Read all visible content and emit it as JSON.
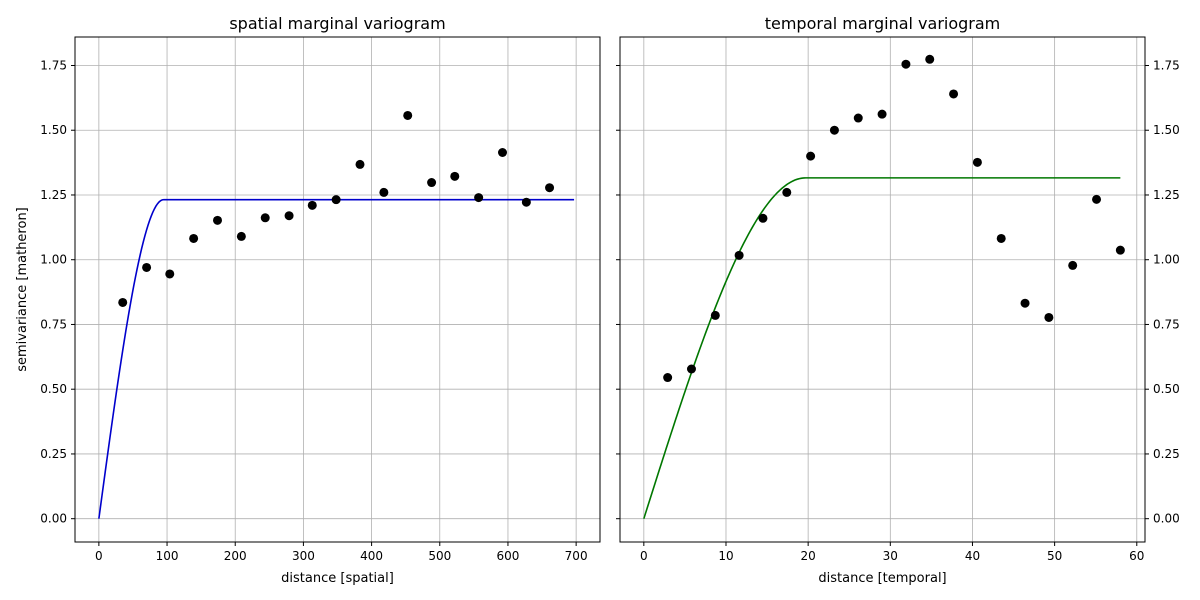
{
  "chart_data": [
    {
      "type": "scatter",
      "title": "spatial marginal variogram",
      "xlabel": "distance [spatial]",
      "ylabel": "semivariance [matheron]",
      "xlim": [
        -35,
        735
      ],
      "ylim": [
        -0.09,
        1.86
      ],
      "xticks": [
        0,
        100,
        200,
        300,
        400,
        500,
        600,
        700
      ],
      "xtick_labels": [
        "0",
        "100",
        "200",
        "300",
        "400",
        "500",
        "600",
        "700"
      ],
      "yticks": [
        0,
        0.25,
        0.5,
        0.75,
        1.0,
        1.25,
        1.5,
        1.75
      ],
      "ytick_labels": [
        "0.00",
        "0.25",
        "0.50",
        "0.75",
        "1.00",
        "1.25",
        "1.50",
        "1.75"
      ],
      "ytick_side": "left",
      "grid": true,
      "points": {
        "color": "#000000",
        "x": [
          35,
          70,
          104,
          139,
          174,
          209,
          244,
          279,
          313,
          348,
          383,
          418,
          453,
          488,
          522,
          557,
          592,
          627,
          661
        ],
        "y": [
          0.835,
          0.97,
          0.945,
          1.082,
          1.152,
          1.09,
          1.162,
          1.17,
          1.21,
          1.232,
          1.368,
          1.26,
          1.557,
          1.298,
          1.322,
          1.24,
          1.414,
          1.222,
          1.278
        ]
      },
      "model": {
        "type": "spherical",
        "color": "#0000cc",
        "range": 95,
        "sill": 1.232,
        "nugget": 0,
        "x_max": 697
      }
    },
    {
      "type": "scatter",
      "title": "temporal marginal variogram",
      "xlabel": "distance [temporal]",
      "ylabel": "",
      "xlim": [
        -2.9,
        61
      ],
      "ylim": [
        -0.09,
        1.86
      ],
      "xticks": [
        0,
        10,
        20,
        30,
        40,
        50,
        60
      ],
      "xtick_labels": [
        "0",
        "10",
        "20",
        "30",
        "40",
        "50",
        "60"
      ],
      "yticks": [
        0,
        0.25,
        0.5,
        0.75,
        1.0,
        1.25,
        1.5,
        1.75
      ],
      "ytick_labels": [
        "0.00",
        "0.25",
        "0.50",
        "0.75",
        "1.00",
        "1.25",
        "1.50",
        "1.75"
      ],
      "ytick_side": "right",
      "grid": true,
      "points": {
        "color": "#000000",
        "x": [
          2.9,
          5.8,
          8.7,
          11.6,
          14.5,
          17.4,
          20.3,
          23.2,
          26.1,
          29.0,
          31.9,
          34.8,
          37.7,
          40.6,
          43.5,
          46.4,
          49.3,
          52.2,
          55.1,
          58.0
        ],
        "y": [
          0.545,
          0.578,
          0.785,
          1.017,
          1.16,
          1.26,
          1.4,
          1.5,
          1.547,
          1.562,
          1.755,
          1.774,
          1.64,
          1.376,
          1.082,
          0.832,
          0.777,
          0.978,
          1.233,
          1.037
        ]
      },
      "model": {
        "type": "spherical",
        "color": "#007700",
        "range": 19.7,
        "sill": 1.316,
        "nugget": 0,
        "x_max": 58
      }
    }
  ]
}
